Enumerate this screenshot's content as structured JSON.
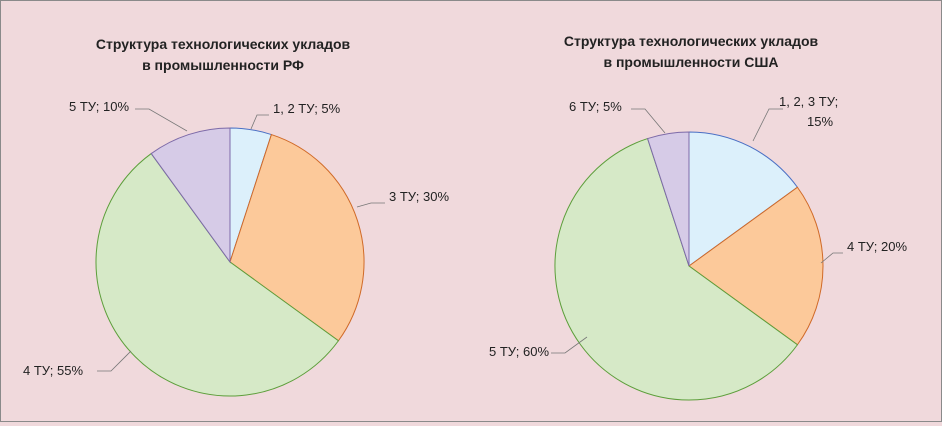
{
  "chart_data": [
    {
      "type": "pie",
      "title_lines": [
        "Структура технологических укладов",
        "в промышленности РФ"
      ],
      "start_angle_deg": 0,
      "slices": [
        {
          "label_lines": [
            "1, 2 ТУ; 5%"
          ],
          "value": 5,
          "color": "#dcf0fb",
          "stroke": "#4a6fc4"
        },
        {
          "label_lines": [
            "3 ТУ; 30%"
          ],
          "value": 30,
          "color": "#fcc99a",
          "stroke": "#d06a28"
        },
        {
          "label_lines": [
            "4 ТУ; 55%"
          ],
          "value": 55,
          "color": "#d6e9c7",
          "stroke": "#5c9e3a"
        },
        {
          "label_lines": [
            "5 ТУ; 10%"
          ],
          "value": 10,
          "color": "#d6cbe7",
          "stroke": "#7d6aa8"
        }
      ]
    },
    {
      "type": "pie",
      "title_lines": [
        "Структура технологических укладов",
        "в промышленности США"
      ],
      "start_angle_deg": 0,
      "slices": [
        {
          "label_lines": [
            "1, 2, 3 ТУ;",
            "15%"
          ],
          "value": 15,
          "color": "#dcf0fb",
          "stroke": "#4a6fc4"
        },
        {
          "label_lines": [
            "4 ТУ; 20%"
          ],
          "value": 20,
          "color": "#fcc99a",
          "stroke": "#d06a28"
        },
        {
          "label_lines": [
            "5 ТУ; 60%"
          ],
          "value": 60,
          "color": "#d6e9c7",
          "stroke": "#5c9e3a"
        },
        {
          "label_lines": [
            "6 ТУ; 5%"
          ],
          "value": 5,
          "color": "#d6cbe7",
          "stroke": "#7d6aa8"
        }
      ]
    }
  ]
}
